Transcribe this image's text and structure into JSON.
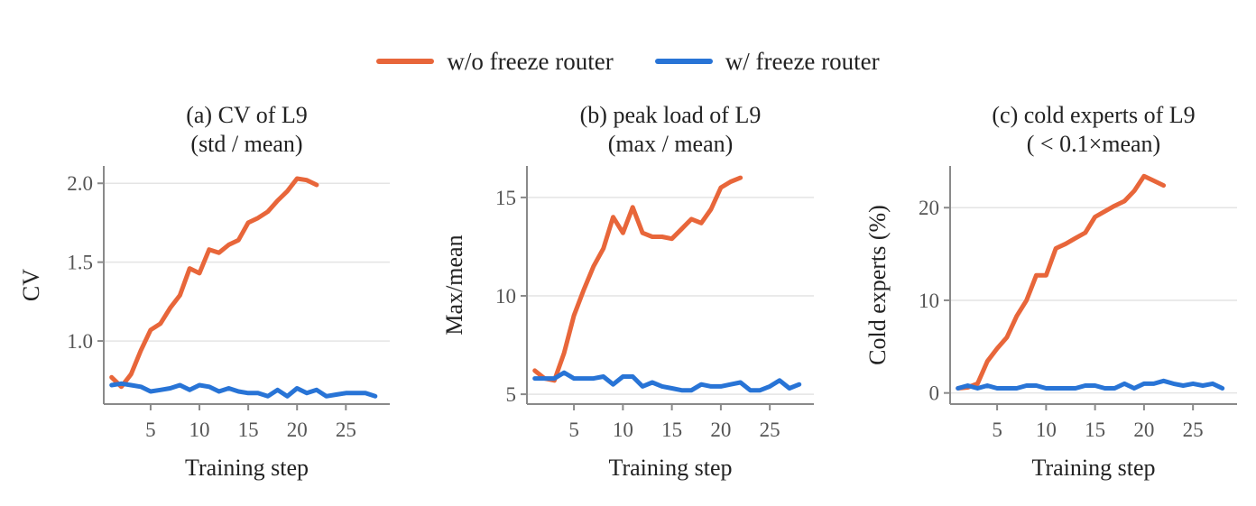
{
  "colors": {
    "wo_freeze": "#E8663A",
    "w_freeze": "#2874D6",
    "axis": "#8a8a8a",
    "grid": "#e4e4e4",
    "tick_text": "#555555",
    "text": "#222222"
  },
  "legend": {
    "position": "top-center",
    "items": [
      {
        "label": "w/o freeze router",
        "color": "#E8663A"
      },
      {
        "label": "w/ freeze router",
        "color": "#2874D6"
      }
    ]
  },
  "chart_data": [
    {
      "type": "line",
      "title": "(a) CV of L9",
      "subtitle": "(std / mean)",
      "xlabel": "Training step",
      "ylabel": "CV",
      "xlim": [
        0.2,
        29.5
      ],
      "ylim": [
        0.6,
        2.11
      ],
      "xticks": [
        5,
        10,
        15,
        20,
        25
      ],
      "yticks": [
        1.0,
        1.5,
        2.0
      ],
      "ytick_labels": [
        "1.0",
        "1.5",
        "2.0"
      ],
      "grid": "horizontal",
      "series": [
        {
          "name": "w/o freeze router",
          "color": "#E8663A",
          "x": [
            1,
            2,
            3,
            4,
            5,
            6,
            7,
            8,
            9,
            10,
            11,
            12,
            13,
            14,
            15,
            16,
            17,
            18,
            19,
            20,
            21,
            22
          ],
          "y": [
            0.77,
            0.71,
            0.79,
            0.94,
            1.07,
            1.11,
            1.21,
            1.29,
            1.46,
            1.43,
            1.58,
            1.56,
            1.61,
            1.64,
            1.75,
            1.78,
            1.82,
            1.89,
            1.95,
            2.03,
            2.02,
            1.99
          ]
        },
        {
          "name": "w/ freeze router",
          "color": "#2874D6",
          "x": [
            1,
            2,
            3,
            4,
            5,
            6,
            7,
            8,
            9,
            10,
            11,
            12,
            13,
            14,
            15,
            16,
            17,
            18,
            19,
            20,
            21,
            22,
            23,
            24,
            25,
            26,
            27,
            28
          ],
          "y": [
            0.72,
            0.73,
            0.72,
            0.71,
            0.68,
            0.69,
            0.7,
            0.72,
            0.69,
            0.72,
            0.71,
            0.68,
            0.7,
            0.68,
            0.67,
            0.67,
            0.65,
            0.69,
            0.65,
            0.7,
            0.67,
            0.69,
            0.65,
            0.66,
            0.67,
            0.67,
            0.67,
            0.65
          ]
        }
      ]
    },
    {
      "type": "line",
      "title": "(b) peak load of L9",
      "subtitle": "(max / mean)",
      "xlabel": "Training step",
      "ylabel": "Max/mean",
      "xlim": [
        0.2,
        29.5
      ],
      "ylim": [
        4.5,
        16.6
      ],
      "xticks": [
        5,
        10,
        15,
        20,
        25
      ],
      "yticks": [
        5,
        10,
        15
      ],
      "ytick_labels": [
        "5",
        "10",
        "15"
      ],
      "grid": "horizontal",
      "series": [
        {
          "name": "w/o freeze router",
          "color": "#E8663A",
          "x": [
            1,
            2,
            3,
            4,
            5,
            6,
            7,
            8,
            9,
            10,
            11,
            12,
            13,
            14,
            15,
            16,
            17,
            18,
            19,
            20,
            21,
            22
          ],
          "y": [
            6.2,
            5.8,
            5.7,
            7.1,
            9.0,
            10.3,
            11.5,
            12.4,
            14.0,
            13.2,
            14.5,
            13.2,
            13.0,
            13.0,
            12.9,
            13.4,
            13.9,
            13.7,
            14.4,
            15.5,
            15.8,
            16.0
          ]
        },
        {
          "name": "w/ freeze router",
          "color": "#2874D6",
          "x": [
            1,
            2,
            3,
            4,
            5,
            6,
            7,
            8,
            9,
            10,
            11,
            12,
            13,
            14,
            15,
            16,
            17,
            18,
            19,
            20,
            21,
            22,
            23,
            24,
            25,
            26,
            27,
            28
          ],
          "y": [
            5.8,
            5.8,
            5.8,
            6.1,
            5.8,
            5.8,
            5.8,
            5.9,
            5.5,
            5.9,
            5.9,
            5.4,
            5.6,
            5.4,
            5.3,
            5.2,
            5.2,
            5.5,
            5.4,
            5.4,
            5.5,
            5.6,
            5.2,
            5.2,
            5.4,
            5.7,
            5.3,
            5.5
          ]
        }
      ]
    },
    {
      "type": "line",
      "title": "(c) cold experts of L9",
      "subtitle": "( < 0.1×mean)",
      "xlabel": "Training step",
      "ylabel": "Cold experts (%)",
      "xlim": [
        0.2,
        29.5
      ],
      "ylim": [
        -1.2,
        24.5
      ],
      "xticks": [
        5,
        10,
        15,
        20,
        25
      ],
      "yticks": [
        0,
        10,
        20
      ],
      "ytick_labels": [
        "0",
        "10",
        "20"
      ],
      "grid": "horizontal",
      "series": [
        {
          "name": "w/o freeze router",
          "color": "#E8663A",
          "x": [
            1,
            2,
            3,
            4,
            5,
            6,
            7,
            8,
            9,
            10,
            11,
            12,
            13,
            14,
            15,
            16,
            17,
            18,
            19,
            20,
            21,
            22
          ],
          "y": [
            0.5,
            0.6,
            1.0,
            3.4,
            4.8,
            6.0,
            8.3,
            10.0,
            12.7,
            12.7,
            15.6,
            16.1,
            16.7,
            17.3,
            19.0,
            19.6,
            20.2,
            20.7,
            21.8,
            23.4,
            22.9,
            22.4
          ]
        },
        {
          "name": "w/ freeze router",
          "color": "#2874D6",
          "x": [
            1,
            2,
            3,
            4,
            5,
            6,
            7,
            8,
            9,
            10,
            11,
            12,
            13,
            14,
            15,
            16,
            17,
            18,
            19,
            20,
            21,
            22,
            23,
            24,
            25,
            26,
            27,
            28
          ],
          "y": [
            0.5,
            0.8,
            0.5,
            0.8,
            0.5,
            0.5,
            0.5,
            0.8,
            0.8,
            0.5,
            0.5,
            0.5,
            0.5,
            0.8,
            0.8,
            0.5,
            0.5,
            1.0,
            0.5,
            1.0,
            1.0,
            1.3,
            1.0,
            0.8,
            1.0,
            0.8,
            1.0,
            0.5
          ]
        }
      ]
    }
  ]
}
